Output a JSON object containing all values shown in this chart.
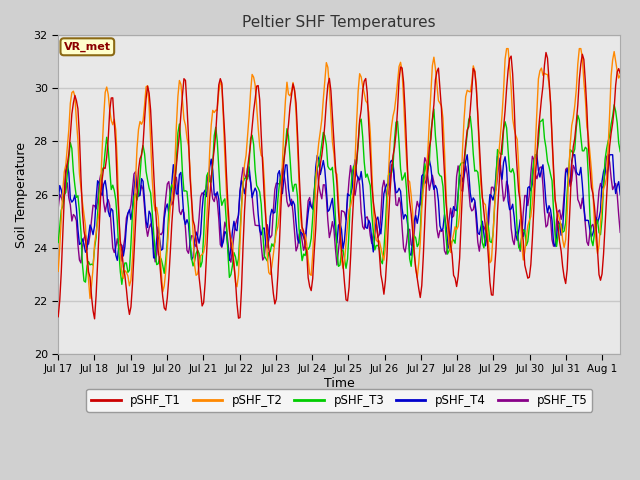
{
  "title": "Peltier SHF Temperatures",
  "xlabel": "Time",
  "ylabel": "Soil Temperature",
  "ylim": [
    20,
    32
  ],
  "yticks": [
    20,
    22,
    24,
    26,
    28,
    30,
    32
  ],
  "fig_bg": "#d0d0d0",
  "plot_bg": "#e8e8e8",
  "grid_color": "#c8c8c8",
  "series_colors": {
    "pSHF_T1": "#cc0000",
    "pSHF_T2": "#ff8800",
    "pSHF_T3": "#00cc00",
    "pSHF_T4": "#0000cc",
    "pSHF_T5": "#880088"
  },
  "annotation_text": "VR_met",
  "xtick_labels": [
    "Jul 17",
    "Jul 18",
    "Jul 19",
    "Jul 20",
    "Jul 21",
    "Jul 22",
    "Jul 23",
    "Jul 24",
    "Jul 25",
    "Jul 26",
    "Jul 27",
    "Jul 28",
    "Jul 29",
    "Jul 30",
    "Jul 31",
    "Aug 1"
  ]
}
